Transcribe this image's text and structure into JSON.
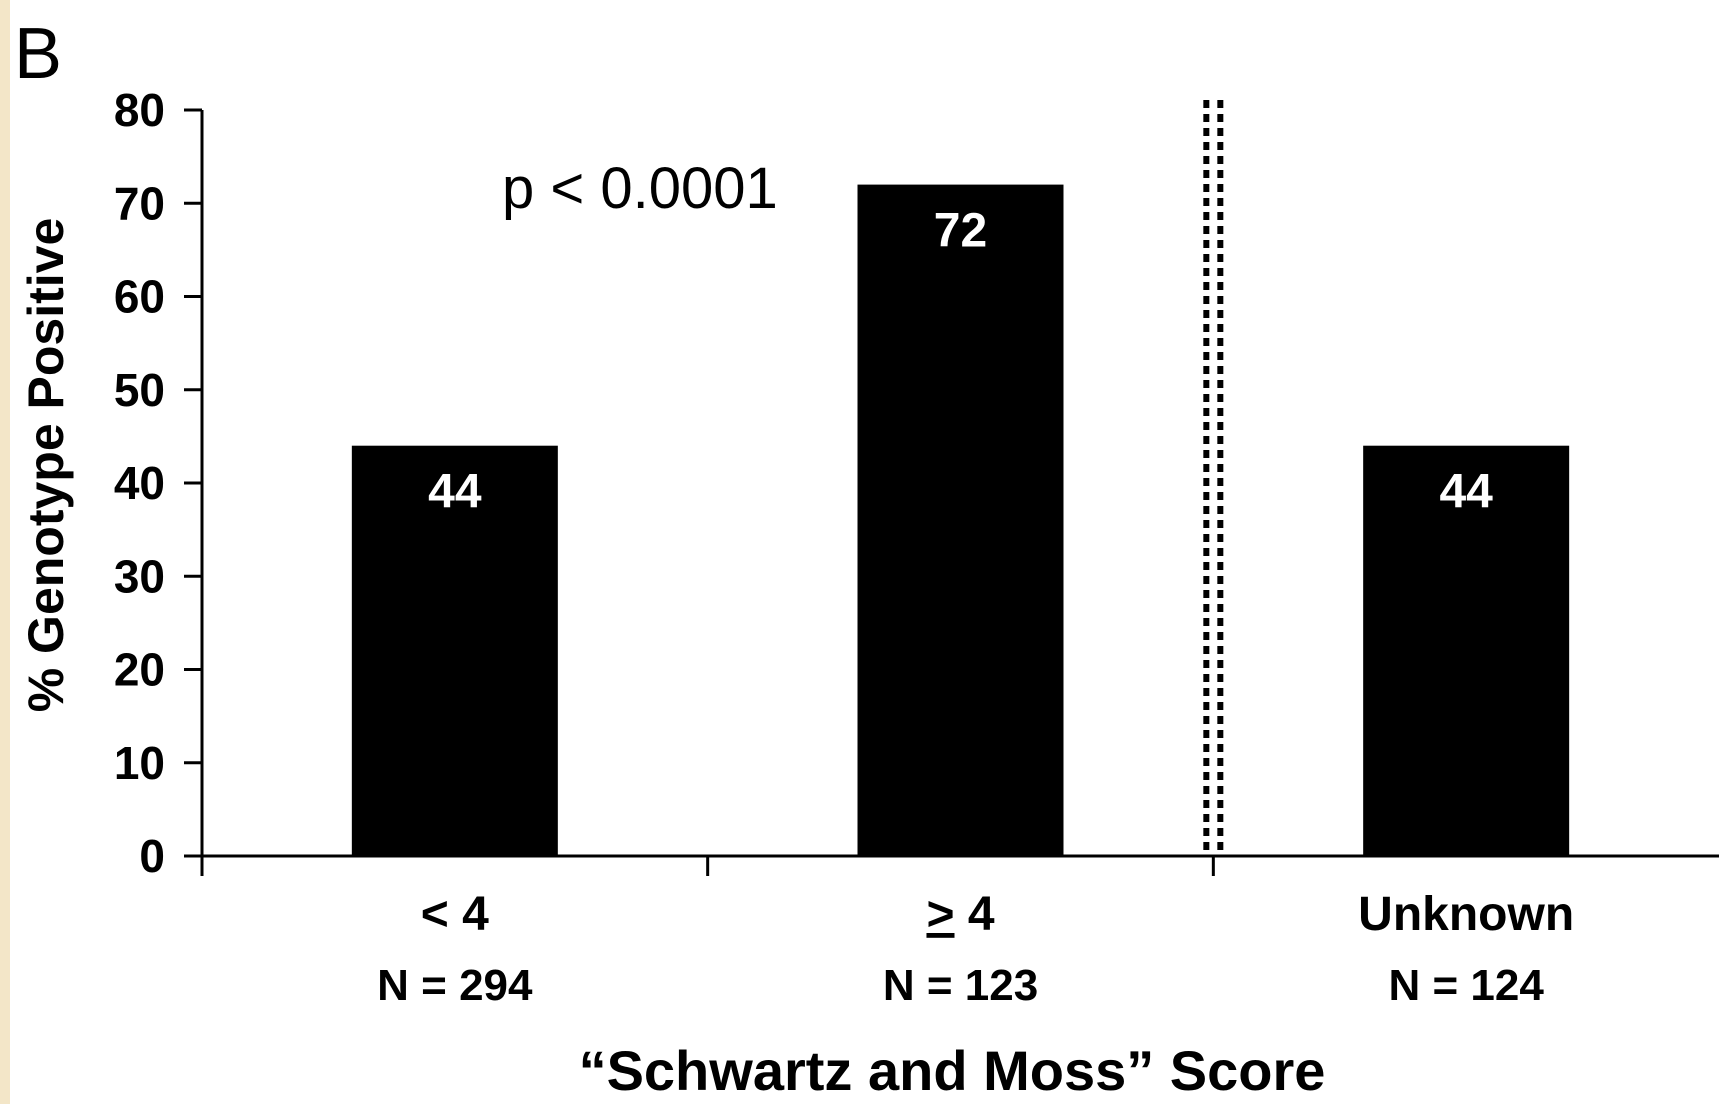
{
  "panel_label": "B",
  "colors": {
    "background": "#ffffff",
    "bar": "#000000",
    "text": "#000000",
    "bar_label": "#ffffff",
    "left_strip": "#f3e6c8"
  },
  "chart_data": {
    "type": "bar",
    "categories": [
      "< 4",
      "≥ 4",
      "Unknown"
    ],
    "category_display": [
      {
        "symbol": "<",
        "value": "4",
        "underline": false
      },
      {
        "symbol": ">",
        "value": "4",
        "underline": true
      },
      {
        "symbol": "",
        "value": "Unknown",
        "underline": false
      }
    ],
    "sample_sizes": [
      "N = 294",
      "N = 123",
      "N = 124"
    ],
    "values": [
      44,
      72,
      44
    ],
    "data_labels": [
      "44",
      "72",
      "44"
    ],
    "xlabel": "“Schwartz and Moss” Score",
    "ylabel": "% Genotype Positive",
    "ylim": [
      0,
      80
    ],
    "yticks": [
      0,
      10,
      20,
      30,
      40,
      50,
      60,
      70,
      80
    ],
    "annotation": "p < 0.0001",
    "separator": "dotted double line between second and third category",
    "grid": false,
    "legend": "none"
  }
}
